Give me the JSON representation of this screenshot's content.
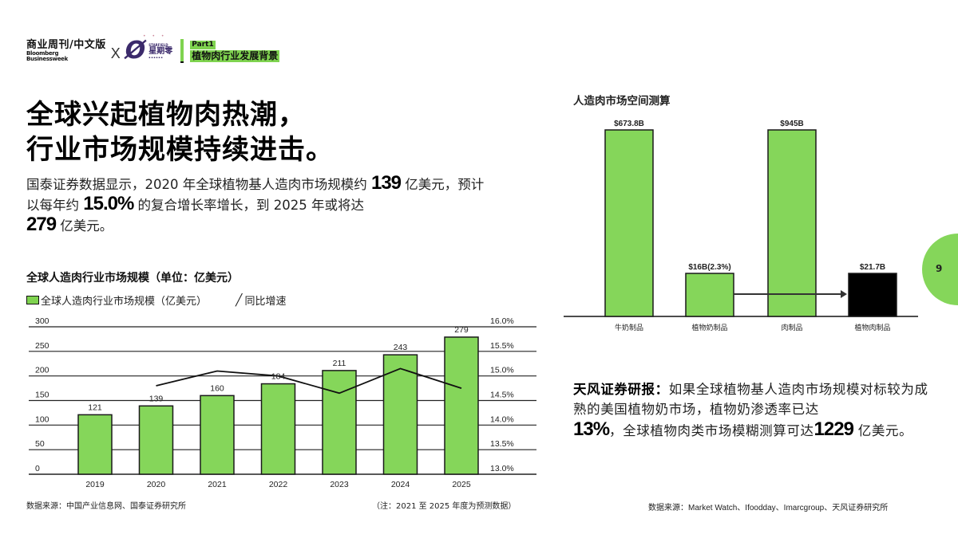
{
  "header": {
    "brand_cn": "商业周刊/中文版",
    "brand_en_line1": "Bloomberg",
    "brand_en_line2": "Businessweek",
    "cross": "X",
    "partner_mark": "Ø",
    "partner_small": "STARFIELD",
    "partner_name": "星期零",
    "partner_dots": "• • •",
    "part_label": "Part1",
    "part_title": "植物肉行业发展背景"
  },
  "headline": {
    "line1": "全球兴起植物肉热潮，",
    "line2": "行业市场规模持续进击。"
  },
  "intro": {
    "p1": "国泰证券数据显示，2020 年全球植物基人造肉市场规模约 ",
    "n1": "139",
    "p2": " 亿美元，预计以每年约 ",
    "n2": "15.0%",
    "p3": " 的复合增长率增长，到 2025 年或将达 ",
    "n3": "279",
    "p4": " 亿美元。"
  },
  "left_chart": {
    "title": "全球人造肉行业市场规模（单位：亿美元）",
    "legend_bar": "全球人造肉行业市场规模（亿美元）",
    "legend_line_glyph": "╱",
    "legend_line": "同比增速",
    "source": "数据来源：中国产业信息网、国泰证券研究所",
    "note": "（注：2021 至 2025 年度为预测数据）"
  },
  "right_chart": {
    "title": "人造肉市场空间测算"
  },
  "quote": {
    "lead": "天风证券研报：",
    "p1": "如果全球植物基人造肉市场规模对标较为成熟的美国植物奶市场，植物奶渗透率已达",
    "n1": "13%",
    "p2": "，全球植物肉类市场模糊测算可达",
    "n2": "1229",
    "p3": " 亿美元。"
  },
  "right_source": "数据来源：Market Watch、Ifoodday、Imarcgroup、天风证券研究所",
  "page_number": "9",
  "colors": {
    "accent_green": "#7fd34f",
    "bar_green": "#85d65a",
    "dark": "#000000",
    "partner_purple": "#3b2a6b"
  },
  "chart_data": [
    {
      "type": "bar",
      "title": "全球人造肉行业市场规模（单位：亿美元）",
      "categories": [
        "2019",
        "2020",
        "2021",
        "2022",
        "2023",
        "2024",
        "2025"
      ],
      "series": [
        {
          "name": "全球人造肉行业市场规模（亿美元）",
          "type": "bar",
          "axis": "left",
          "values": [
            121,
            139,
            160,
            184,
            211,
            243,
            279
          ]
        },
        {
          "name": "同比增速",
          "type": "line",
          "axis": "right",
          "values": [
            null,
            14.8,
            15.1,
            15.0,
            14.65,
            15.15,
            14.75
          ]
        }
      ],
      "y_left": {
        "ticks": [
          "0",
          "50",
          "100",
          "150",
          "200",
          "250",
          "300"
        ],
        "ylim": [
          0,
          300
        ]
      },
      "y_right": {
        "ticks": [
          "13.0%",
          "13.5%",
          "14.0%",
          "14.5%",
          "15.0%",
          "15.5%",
          "16.0%"
        ],
        "ylim": [
          13.0,
          16.0
        ]
      },
      "grid": true,
      "legend_position": "top-left",
      "xlabel": "",
      "ylabel": ""
    },
    {
      "type": "bar",
      "title": "人造肉市场空间测算",
      "categories": [
        "牛奶制品",
        "植物奶制品",
        "肉制品",
        "植物肉制品"
      ],
      "labels": [
        "$673.8B",
        "$16B(2.3%)",
        "$945B",
        "$21.7B"
      ],
      "values": [
        673.8,
        16,
        945,
        21.7
      ],
      "bar_colors": [
        "#85d65a",
        "#85d65a",
        "#85d65a",
        "#000000"
      ],
      "annotation": "arrow from 植物奶制品 to 植物肉制品",
      "grid": false
    }
  ]
}
